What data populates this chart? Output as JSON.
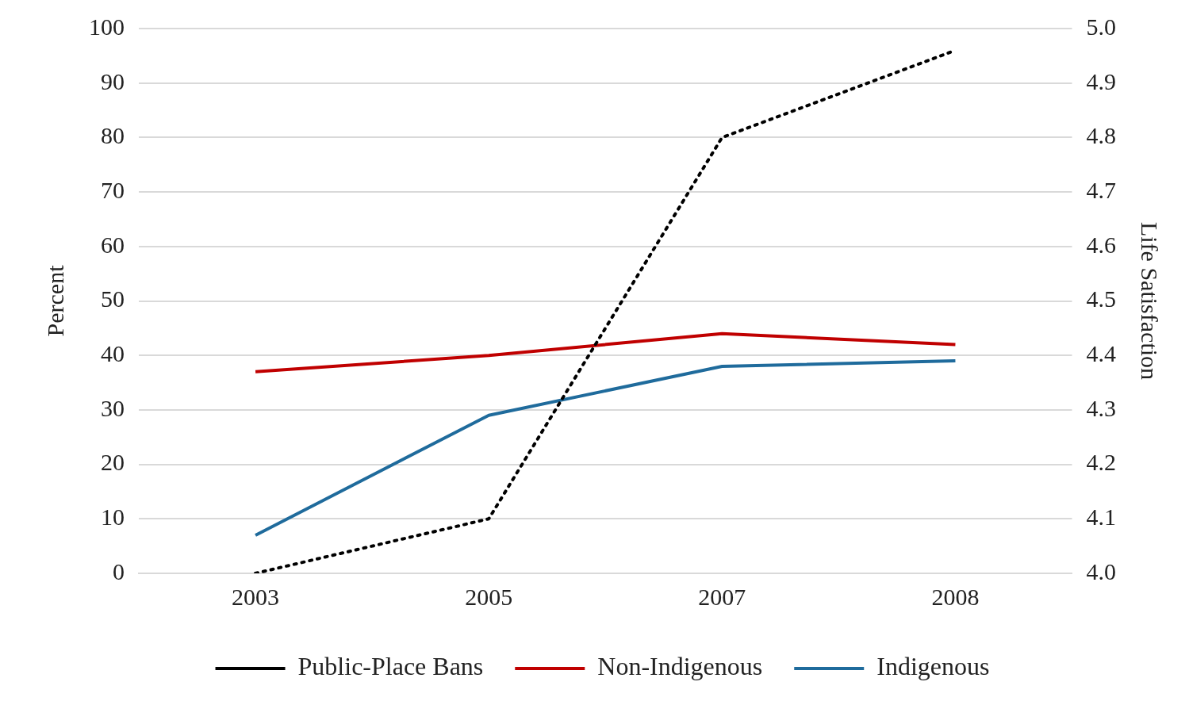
{
  "chart_data": {
    "type": "line",
    "categories": [
      "2003",
      "2005",
      "2007",
      "2008"
    ],
    "series": [
      {
        "name": "Public-Place Bans",
        "color": "#000000",
        "values": [
          0,
          10,
          80,
          96
        ],
        "line_style": "dotted"
      },
      {
        "name": "Non-Indigenous",
        "color": "#c00000",
        "values": [
          4.37,
          4.4,
          4.44,
          4.42
        ],
        "axis": "y2",
        "line_style": "solid"
      },
      {
        "name": "Indigenous",
        "color": "#1f6b9c",
        "values": [
          4.07,
          4.29,
          4.38,
          4.39
        ],
        "axis": "y2",
        "line_style": "solid"
      }
    ],
    "ylabel": "Percent",
    "y2label": "Life Satisfaction",
    "ylim": [
      0,
      100
    ],
    "yticks": [
      0,
      10,
      20,
      30,
      40,
      50,
      60,
      70,
      80,
      90,
      100
    ],
    "y2lim": [
      4.0,
      5.0
    ],
    "y2ticks": [
      {
        "value": 4.0,
        "label": "4.0"
      },
      {
        "value": 4.1,
        "label": "4.1"
      },
      {
        "value": 4.2,
        "label": "4.2"
      },
      {
        "value": 4.3,
        "label": "4.3"
      },
      {
        "value": 4.4,
        "label": "4.4"
      },
      {
        "value": 4.5,
        "label": "4.5"
      },
      {
        "value": 4.6,
        "label": "4.6"
      },
      {
        "value": 4.7,
        "label": "4.7"
      },
      {
        "value": 4.8,
        "label": "4.8"
      },
      {
        "value": 4.9,
        "label": "4.9"
      },
      {
        "value": 5.0,
        "label": "5.0"
      }
    ],
    "grid": "y",
    "legend": "bottom",
    "marker": "none"
  }
}
